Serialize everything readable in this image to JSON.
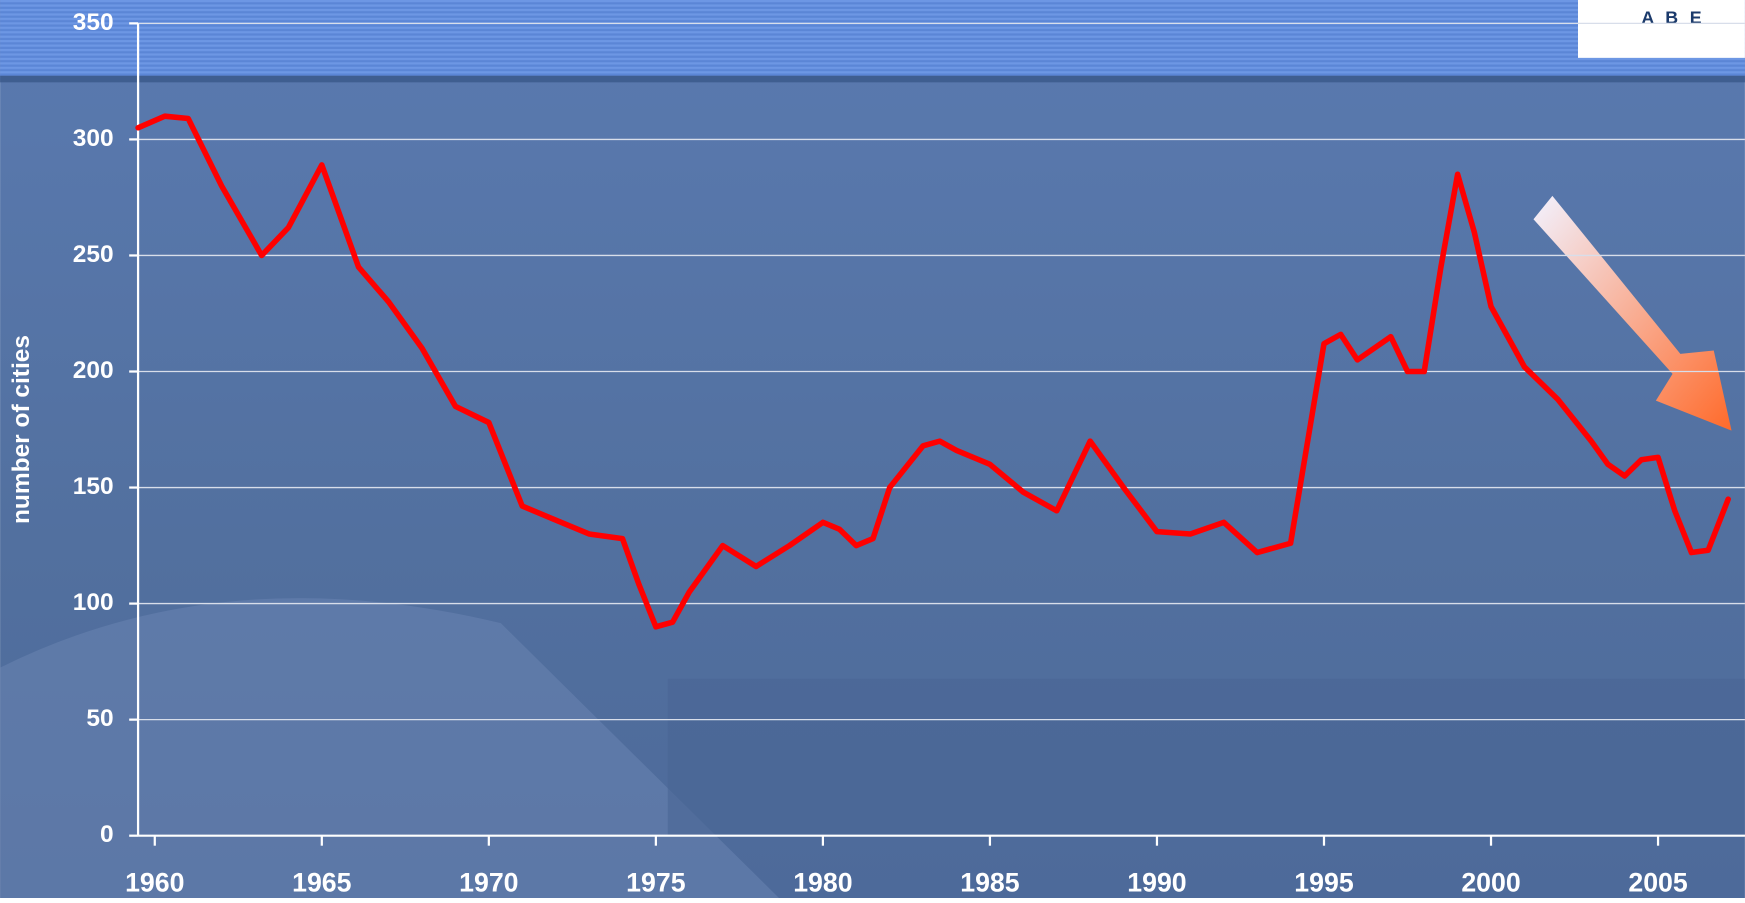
{
  "logo": "A B E",
  "chart_data": {
    "type": "line",
    "y_label": "number of cities",
    "x": [
      1959.5,
      1960.3,
      1961,
      1962,
      1963.2,
      1964,
      1965,
      1966.1,
      1967,
      1968,
      1969,
      1970,
      1971,
      1972,
      1973,
      1974,
      1974.5,
      1975,
      1975.5,
      1976,
      1977,
      1978,
      1979,
      1980,
      1980.5,
      1981,
      1981.5,
      1982,
      1983,
      1983.5,
      1984,
      1985,
      1986,
      1987,
      1987.5,
      1988,
      1989,
      1990,
      1991,
      1992,
      1993,
      1994,
      1995,
      1995.5,
      1996,
      1997,
      1997.5,
      1998,
      1998.5,
      1999,
      1999.5,
      2000,
      2001,
      2002,
      2003,
      2003.5,
      2004,
      2004.5,
      2005,
      2005.5,
      2006,
      2006.5,
      2007.1
    ],
    "series": [
      {
        "name": "number of cities",
        "color": "#ff0000",
        "values": [
          305,
          310,
          309,
          280,
          250,
          262,
          289,
          245,
          230,
          210,
          185,
          178,
          142,
          136,
          130,
          128,
          108,
          90,
          92,
          105,
          125,
          116,
          125,
          135,
          132,
          125,
          128,
          150,
          168,
          170,
          166,
          160,
          148,
          140,
          155,
          170,
          150,
          131,
          130,
          135,
          122,
          126,
          212,
          216,
          205,
          215,
          200,
          200,
          245,
          285,
          260,
          228,
          202,
          188,
          170,
          160,
          155,
          162,
          163,
          140,
          122,
          123,
          145
        ]
      }
    ],
    "xlim": [
      1959.5,
      2007.6
    ],
    "xticks": [
      1960,
      1965,
      1970,
      1975,
      1980,
      1985,
      1990,
      1995,
      2000,
      2005
    ],
    "ylim": [
      0,
      350
    ],
    "yticks": [
      0,
      50,
      100,
      150,
      200,
      250,
      300,
      350
    ],
    "grid": true
  }
}
